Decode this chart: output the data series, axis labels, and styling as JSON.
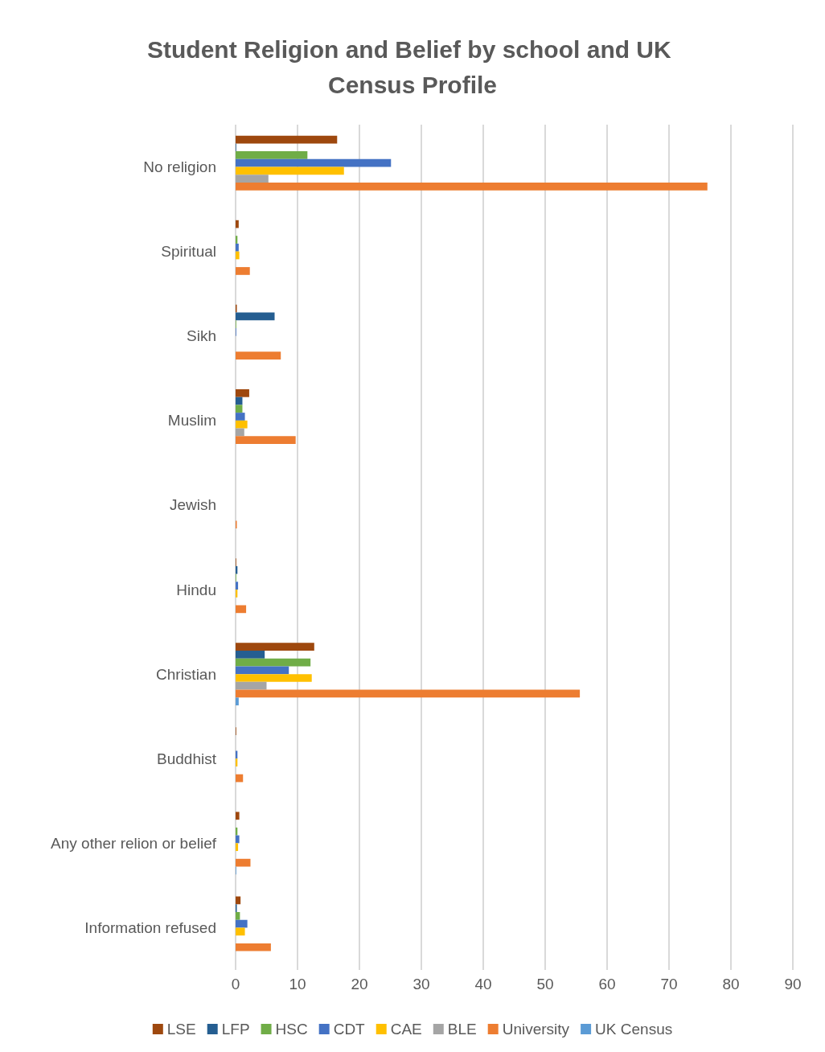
{
  "chart_data": {
    "type": "bar",
    "orientation": "horizontal",
    "title": "Student Religion and Belief by school and UK Census Profile",
    "categories": [
      "No religion",
      "Spiritual",
      "Sikh",
      "Muslim",
      "Jewish",
      "Hindu",
      "Christian",
      "Buddhist",
      "Any other relion or belief",
      "Information refused"
    ],
    "series": [
      {
        "name": "LSE",
        "color": "#9e480e",
        "values": [
          16.4,
          0.5,
          0.2,
          2.2,
          0,
          0.1,
          12.7,
          0.1,
          0.6,
          0.8
        ]
      },
      {
        "name": "LFP",
        "color": "#255e91",
        "values": [
          0.1,
          0,
          6.3,
          1.1,
          0,
          0.3,
          4.7,
          0,
          0,
          0.2
        ]
      },
      {
        "name": "HSC",
        "color": "#70ad47",
        "values": [
          11.6,
          0.3,
          0.1,
          1.1,
          0,
          0.1,
          12.1,
          0,
          0.3,
          0.7
        ]
      },
      {
        "name": "CDT",
        "color": "#4472c4",
        "values": [
          25.1,
          0.5,
          0.1,
          1.5,
          0,
          0.4,
          8.6,
          0.3,
          0.6,
          1.9
        ]
      },
      {
        "name": "CAE",
        "color": "#ffc000",
        "values": [
          17.5,
          0.6,
          0,
          1.9,
          0,
          0.3,
          12.3,
          0.3,
          0.4,
          1.5
        ]
      },
      {
        "name": "BLE",
        "color": "#a5a5a5",
        "values": [
          5.3,
          0,
          null,
          1.4,
          0,
          0,
          5.0,
          0,
          0,
          null
        ]
      },
      {
        "name": "University",
        "color": "#ed7d31",
        "values": [
          76.2,
          2.3,
          7.3,
          9.7,
          0.2,
          1.7,
          55.6,
          1.2,
          2.4,
          5.7
        ]
      },
      {
        "name": "UK Census",
        "color": "#5b9bd5",
        "values": [
          0,
          0,
          0,
          0,
          0,
          0,
          0.5,
          0,
          0.1,
          0
        ]
      }
    ],
    "xlim": [
      0,
      90
    ],
    "xticks": [
      0,
      10,
      20,
      30,
      40,
      50,
      60,
      70,
      80,
      90
    ],
    "grid": "x",
    "legend": "bottom"
  }
}
